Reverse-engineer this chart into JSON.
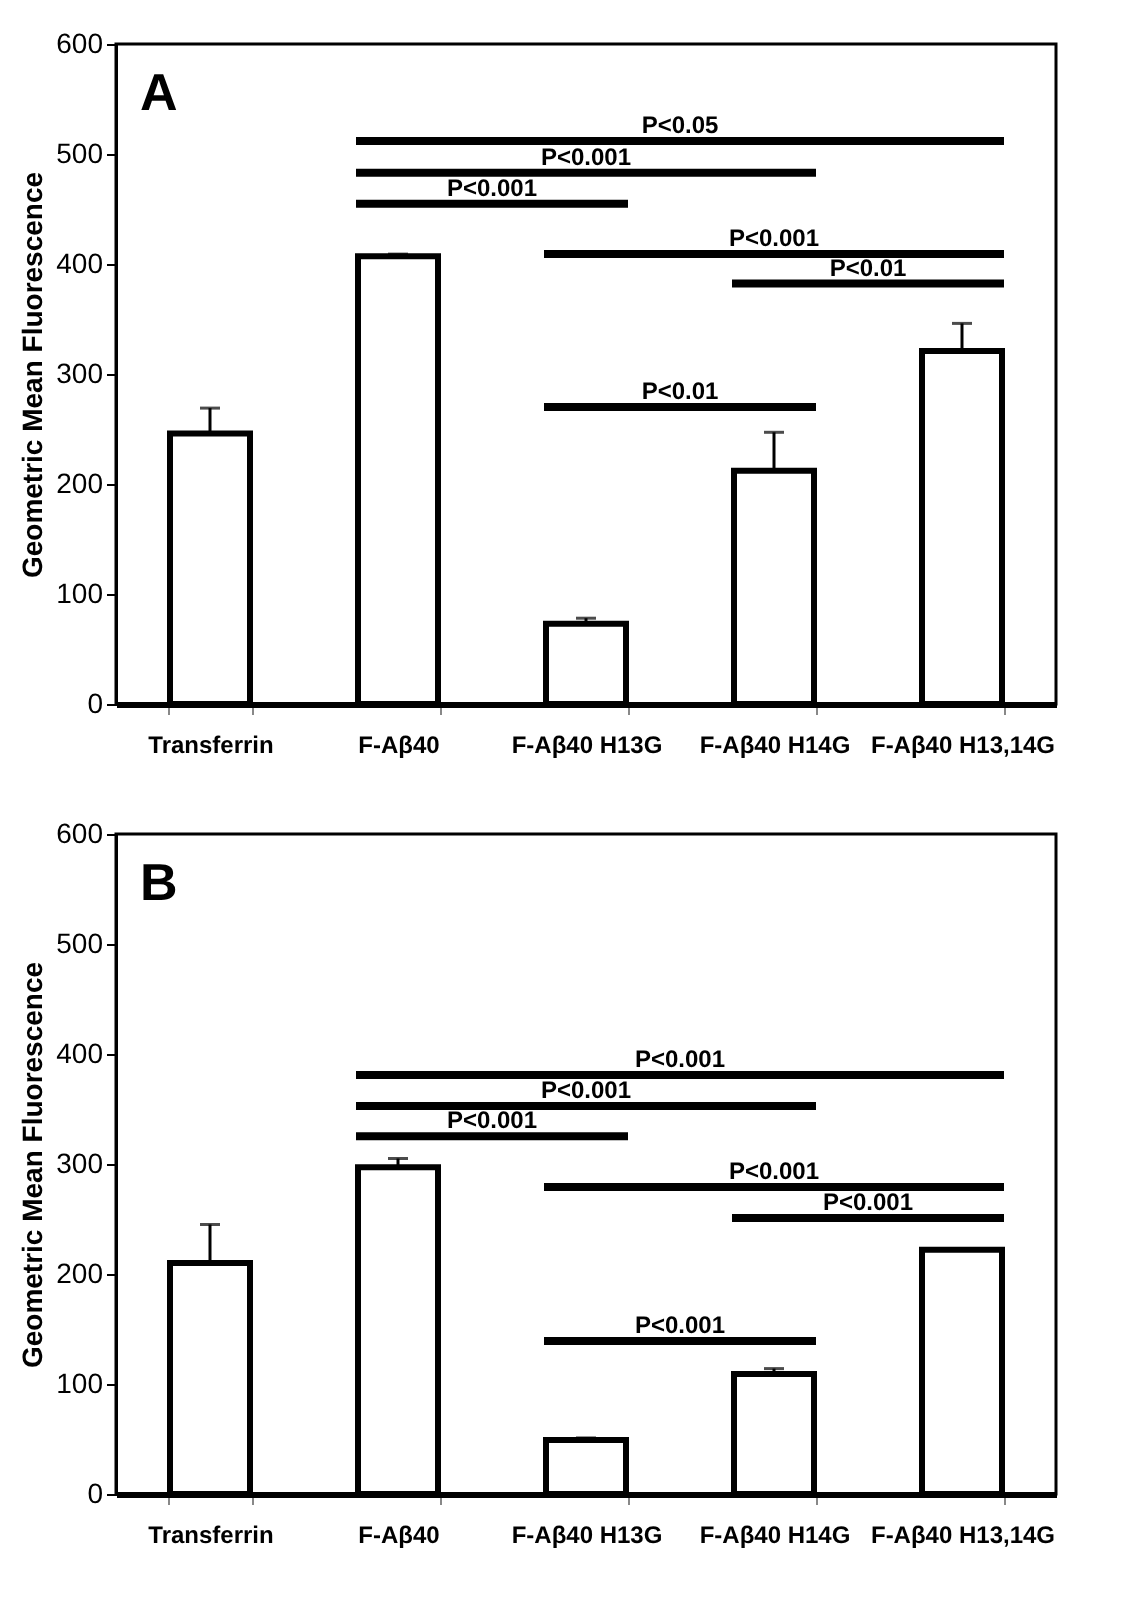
{
  "chart_data": [
    {
      "type": "bar",
      "title": "A",
      "ylabel": "Geometric Mean Fluorescence",
      "categories": [
        "Transferrin",
        "F-Aβ40",
        "F-Aβ40 H13G",
        "F-Aβ40 H14G",
        "F-Aβ40 H13,14G"
      ],
      "values": [
        246,
        407,
        73,
        212,
        321
      ],
      "errors": [
        23,
        2,
        5,
        35,
        25
      ],
      "color": "#ffffff",
      "ylim": [
        0,
        600
      ],
      "yticks": [
        0,
        100,
        200,
        300,
        400,
        500,
        600
      ],
      "grid": false,
      "annotations": [
        "P<0.05",
        "P<0.001",
        "P<0.001",
        "P<0.001",
        "P<0.01",
        "P<0.01"
      ]
    },
    {
      "type": "bar",
      "title": "B",
      "ylabel": "Geometric Mean Fluorescence",
      "categories": [
        "Transferrin",
        "F-Aβ40",
        "F-Aβ40 H13G",
        "F-Aβ40 H14G",
        "F-Aβ40 H13,14G"
      ],
      "values": [
        210,
        297,
        49,
        109,
        222
      ],
      "errors": [
        35,
        8,
        2,
        5,
        1
      ],
      "color": "#ffffff",
      "ylim": [
        0,
        600
      ],
      "yticks": [
        0,
        100,
        200,
        300,
        400,
        500,
        600
      ],
      "grid": false,
      "annotations": [
        "P<0.001",
        "P<0.001",
        "P<0.001",
        "P<0.001",
        "P<0.001",
        "P<0.001"
      ]
    }
  ]
}
